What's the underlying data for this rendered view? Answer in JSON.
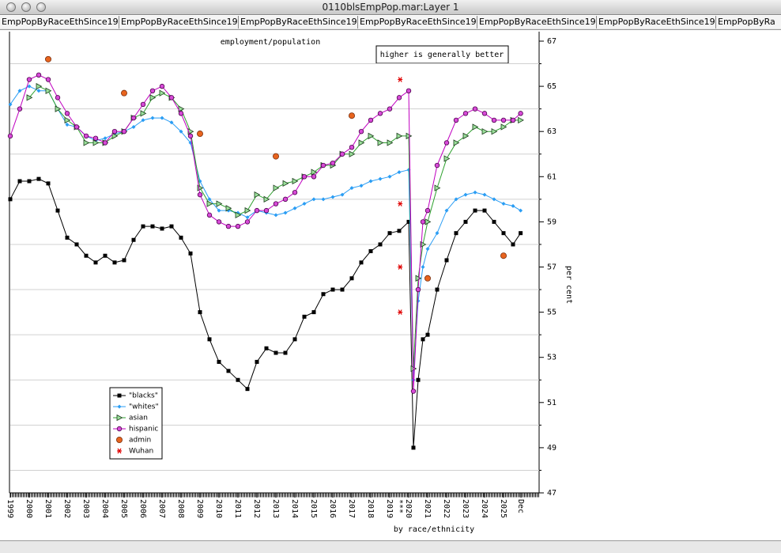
{
  "window": {
    "title": "0110blsEmpPop.mar:Layer 1",
    "tabs": [
      "EmpPopByRaceEthSince1999",
      "EmpPopByRaceEthSince1999",
      "EmpPopByRaceEthSince1999",
      "EmpPopByRaceEthSince1999",
      "EmpPopByRaceEthSince1999",
      "EmpPopByRaceEthSince1999",
      "EmpPopByRa"
    ]
  },
  "chart_data": {
    "type": "line",
    "title": "employment/population",
    "ylabel": "per cent",
    "xlabel": "by race/ethnicity",
    "note": "higher is generally better",
    "x_note": {
      "x": 2019.55,
      "text": "***"
    },
    "xlim": [
      1999,
      2026.875
    ],
    "ylim": [
      47,
      67
    ],
    "xticks": [
      1999,
      2000,
      2001,
      2002,
      2003,
      2004,
      2005,
      2006,
      2007,
      2008,
      2009,
      2010,
      2011,
      2012,
      2013,
      2014,
      2015,
      2016,
      2017,
      2018,
      2019,
      2020,
      2021,
      2022,
      2023,
      2024,
      2025,
      {
        "value": 2025.92,
        "label": "Dec"
      }
    ],
    "yticks": [
      47,
      49,
      51,
      53,
      55,
      57,
      59,
      61,
      63,
      65,
      67
    ],
    "grid": true,
    "legend": "lower-left",
    "series": [
      {
        "name": "\"blacks\"",
        "color": "#000000",
        "marker": "square",
        "line": true,
        "x": [
          1999,
          1999.5,
          2000,
          2000.5,
          2001,
          2001.5,
          2002,
          2002.5,
          2003,
          2003.5,
          2004,
          2004.5,
          2005,
          2005.5,
          2006,
          2006.5,
          2007,
          2007.5,
          2008,
          2008.5,
          2009,
          2009.5,
          2010,
          2010.5,
          2011,
          2011.5,
          2012,
          2012.5,
          2013,
          2013.5,
          2014,
          2014.5,
          2015,
          2015.5,
          2016,
          2016.5,
          2017,
          2017.5,
          2018,
          2018.5,
          2019,
          2019.5,
          2020,
          2020.25,
          2020.5,
          2020.75,
          2021,
          2021.5,
          2022,
          2022.5,
          2023,
          2023.5,
          2024,
          2024.5,
          2025,
          2025.5,
          2025.9
        ],
        "values": [
          60.0,
          60.8,
          60.8,
          60.9,
          60.7,
          59.5,
          58.3,
          58.0,
          57.5,
          57.2,
          57.5,
          57.2,
          57.3,
          58.2,
          58.8,
          58.8,
          58.7,
          58.8,
          58.3,
          57.6,
          55.0,
          53.8,
          52.8,
          52.4,
          52.0,
          51.6,
          52.8,
          53.4,
          53.2,
          53.2,
          53.8,
          54.8,
          55.0,
          55.8,
          56.0,
          56.0,
          56.5,
          57.2,
          57.7,
          58.0,
          58.5,
          58.6,
          59.0,
          49.0,
          52.0,
          53.8,
          54.0,
          56.0,
          57.3,
          58.5,
          59.0,
          59.5,
          59.5,
          59.0,
          58.5,
          58.0,
          58.5
        ]
      },
      {
        "name": "\"whites\"",
        "color": "#2a9df4",
        "marker": "diamond",
        "line": true,
        "x": [
          1999,
          1999.5,
          2000,
          2000.5,
          2001,
          2001.5,
          2002,
          2002.5,
          2003,
          2003.5,
          2004,
          2004.5,
          2005,
          2005.5,
          2006,
          2006.5,
          2007,
          2007.5,
          2008,
          2008.5,
          2009,
          2009.5,
          2010,
          2010.5,
          2011,
          2011.5,
          2012,
          2012.5,
          2013,
          2013.5,
          2014,
          2014.5,
          2015,
          2015.5,
          2016,
          2016.5,
          2017,
          2017.5,
          2018,
          2018.5,
          2019,
          2019.5,
          2020,
          2020.25,
          2020.5,
          2020.75,
          2021,
          2021.5,
          2022,
          2022.5,
          2023,
          2023.5,
          2024,
          2024.5,
          2025,
          2025.5,
          2025.9
        ],
        "values": [
          64.2,
          64.8,
          65.0,
          64.8,
          64.8,
          64.0,
          63.3,
          63.2,
          62.8,
          62.6,
          62.7,
          62.9,
          63.0,
          63.2,
          63.5,
          63.6,
          63.6,
          63.4,
          63.0,
          62.5,
          60.8,
          60.0,
          59.5,
          59.5,
          59.4,
          59.2,
          59.5,
          59.4,
          59.3,
          59.4,
          59.6,
          59.8,
          60.0,
          60.0,
          60.1,
          60.2,
          60.5,
          60.6,
          60.8,
          60.9,
          61.0,
          61.2,
          61.3,
          52.0,
          55.5,
          57.0,
          57.8,
          58.5,
          59.5,
          60.0,
          60.2,
          60.3,
          60.2,
          60.0,
          59.8,
          59.7,
          59.5
        ]
      },
      {
        "name": "asian",
        "color": "#2ca02c",
        "marker": "triangle",
        "line": true,
        "x": [
          2000,
          2000.5,
          2001,
          2001.5,
          2002,
          2002.5,
          2003,
          2003.5,
          2004,
          2004.5,
          2005,
          2005.5,
          2006,
          2006.5,
          2007,
          2007.5,
          2008,
          2008.5,
          2009,
          2009.5,
          2010,
          2010.5,
          2011,
          2011.5,
          2012,
          2012.5,
          2013,
          2013.5,
          2014,
          2014.5,
          2015,
          2015.5,
          2016,
          2016.5,
          2017,
          2017.5,
          2018,
          2018.5,
          2019,
          2019.5,
          2020,
          2020.25,
          2020.5,
          2020.75,
          2021,
          2021.5,
          2022,
          2022.5,
          2023,
          2023.5,
          2024,
          2024.5,
          2025,
          2025.5,
          2025.9
        ],
        "values": [
          64.5,
          65.0,
          64.8,
          64.0,
          63.5,
          63.2,
          62.5,
          62.5,
          62.5,
          62.8,
          63.0,
          63.6,
          63.8,
          64.5,
          64.7,
          64.5,
          64.0,
          63.0,
          60.5,
          59.8,
          59.8,
          59.6,
          59.3,
          59.5,
          60.2,
          60.0,
          60.5,
          60.7,
          60.8,
          61.0,
          61.2,
          61.5,
          61.5,
          62.0,
          62.0,
          62.5,
          62.8,
          62.5,
          62.5,
          62.8,
          62.8,
          52.5,
          56.5,
          58.0,
          59.0,
          60.5,
          61.8,
          62.5,
          62.8,
          63.2,
          63.0,
          63.0,
          63.2,
          63.5,
          63.5
        ]
      },
      {
        "name": "hispanic",
        "color": "#c000c0",
        "marker": "circle",
        "line": true,
        "x": [
          1999,
          1999.5,
          2000,
          2000.5,
          2001,
          2001.5,
          2002,
          2002.5,
          2003,
          2003.5,
          2004,
          2004.5,
          2005,
          2005.5,
          2006,
          2006.5,
          2007,
          2007.5,
          2008,
          2008.5,
          2009,
          2009.5,
          2010,
          2010.5,
          2011,
          2011.5,
          2012,
          2012.5,
          2013,
          2013.5,
          2014,
          2014.5,
          2015,
          2015.5,
          2016,
          2016.5,
          2017,
          2017.5,
          2018,
          2018.5,
          2019,
          2019.5,
          2020,
          2020.25,
          2020.5,
          2020.75,
          2021,
          2021.5,
          2022,
          2022.5,
          2023,
          2023.5,
          2024,
          2024.5,
          2025,
          2025.5,
          2025.9
        ],
        "values": [
          62.8,
          64.0,
          65.3,
          65.5,
          65.3,
          64.5,
          63.8,
          63.2,
          62.8,
          62.7,
          62.5,
          63.0,
          63.0,
          63.6,
          64.2,
          64.8,
          65.0,
          64.5,
          63.8,
          62.8,
          60.2,
          59.3,
          59.0,
          58.8,
          58.8,
          59.0,
          59.5,
          59.5,
          59.8,
          60.0,
          60.3,
          61.0,
          61.0,
          61.5,
          61.6,
          62.0,
          62.3,
          63.0,
          63.5,
          63.8,
          64.0,
          64.5,
          64.8,
          51.5,
          56.0,
          59.0,
          59.5,
          61.5,
          62.5,
          63.5,
          63.8,
          64.0,
          63.8,
          63.5,
          63.5,
          63.5,
          63.8
        ]
      },
      {
        "name": "admin",
        "color": "#e8641e",
        "marker": "dot",
        "line": false,
        "x": [
          2001,
          2005,
          2009,
          2013,
          2017,
          2021,
          2025
        ],
        "values": [
          66.2,
          64.7,
          62.9,
          61.9,
          63.7,
          56.5,
          57.5
        ]
      },
      {
        "name": "Wuhan",
        "color": "#e00000",
        "marker": "asterisk",
        "line": false,
        "x": [
          2019.55,
          2019.55,
          2019.55,
          2019.55
        ],
        "values": [
          65.3,
          59.8,
          57.0,
          55.0
        ]
      }
    ]
  }
}
